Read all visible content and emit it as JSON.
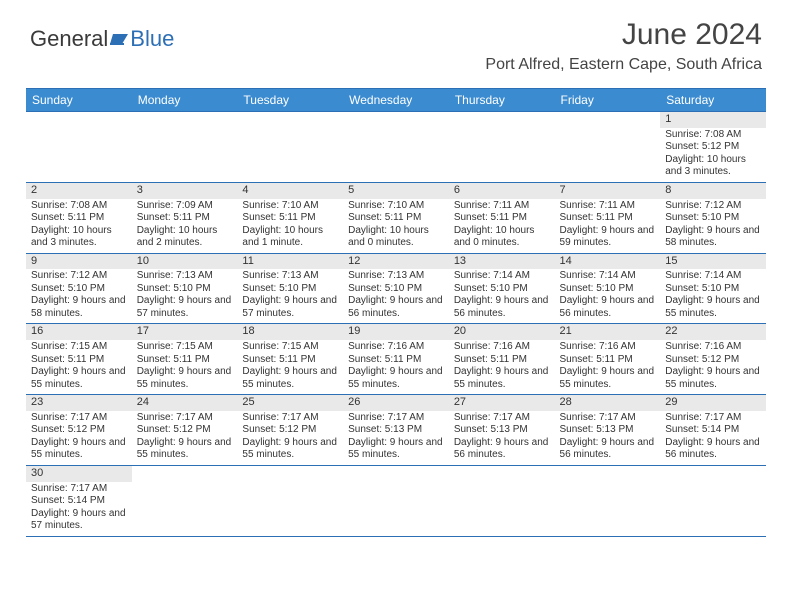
{
  "logo": {
    "textA": "General",
    "textB": "Blue"
  },
  "title": "June 2024",
  "location": "Port Alfred, Eastern Cape, South Africa",
  "colors": {
    "header_bg": "#3b8bd0",
    "border": "#2d6fb5",
    "daynum_bg": "#e9e9e9",
    "text": "#333333"
  },
  "day_headers": [
    "Sunday",
    "Monday",
    "Tuesday",
    "Wednesday",
    "Thursday",
    "Friday",
    "Saturday"
  ],
  "weeks": [
    [
      {
        "n": "",
        "sr": "",
        "ss": "",
        "dl": ""
      },
      {
        "n": "",
        "sr": "",
        "ss": "",
        "dl": ""
      },
      {
        "n": "",
        "sr": "",
        "ss": "",
        "dl": ""
      },
      {
        "n": "",
        "sr": "",
        "ss": "",
        "dl": ""
      },
      {
        "n": "",
        "sr": "",
        "ss": "",
        "dl": ""
      },
      {
        "n": "",
        "sr": "",
        "ss": "",
        "dl": ""
      },
      {
        "n": "1",
        "sr": "Sunrise: 7:08 AM",
        "ss": "Sunset: 5:12 PM",
        "dl": "Daylight: 10 hours and 3 minutes."
      }
    ],
    [
      {
        "n": "2",
        "sr": "Sunrise: 7:08 AM",
        "ss": "Sunset: 5:11 PM",
        "dl": "Daylight: 10 hours and 3 minutes."
      },
      {
        "n": "3",
        "sr": "Sunrise: 7:09 AM",
        "ss": "Sunset: 5:11 PM",
        "dl": "Daylight: 10 hours and 2 minutes."
      },
      {
        "n": "4",
        "sr": "Sunrise: 7:10 AM",
        "ss": "Sunset: 5:11 PM",
        "dl": "Daylight: 10 hours and 1 minute."
      },
      {
        "n": "5",
        "sr": "Sunrise: 7:10 AM",
        "ss": "Sunset: 5:11 PM",
        "dl": "Daylight: 10 hours and 0 minutes."
      },
      {
        "n": "6",
        "sr": "Sunrise: 7:11 AM",
        "ss": "Sunset: 5:11 PM",
        "dl": "Daylight: 10 hours and 0 minutes."
      },
      {
        "n": "7",
        "sr": "Sunrise: 7:11 AM",
        "ss": "Sunset: 5:11 PM",
        "dl": "Daylight: 9 hours and 59 minutes."
      },
      {
        "n": "8",
        "sr": "Sunrise: 7:12 AM",
        "ss": "Sunset: 5:10 PM",
        "dl": "Daylight: 9 hours and 58 minutes."
      }
    ],
    [
      {
        "n": "9",
        "sr": "Sunrise: 7:12 AM",
        "ss": "Sunset: 5:10 PM",
        "dl": "Daylight: 9 hours and 58 minutes."
      },
      {
        "n": "10",
        "sr": "Sunrise: 7:13 AM",
        "ss": "Sunset: 5:10 PM",
        "dl": "Daylight: 9 hours and 57 minutes."
      },
      {
        "n": "11",
        "sr": "Sunrise: 7:13 AM",
        "ss": "Sunset: 5:10 PM",
        "dl": "Daylight: 9 hours and 57 minutes."
      },
      {
        "n": "12",
        "sr": "Sunrise: 7:13 AM",
        "ss": "Sunset: 5:10 PM",
        "dl": "Daylight: 9 hours and 56 minutes."
      },
      {
        "n": "13",
        "sr": "Sunrise: 7:14 AM",
        "ss": "Sunset: 5:10 PM",
        "dl": "Daylight: 9 hours and 56 minutes."
      },
      {
        "n": "14",
        "sr": "Sunrise: 7:14 AM",
        "ss": "Sunset: 5:10 PM",
        "dl": "Daylight: 9 hours and 56 minutes."
      },
      {
        "n": "15",
        "sr": "Sunrise: 7:14 AM",
        "ss": "Sunset: 5:10 PM",
        "dl": "Daylight: 9 hours and 55 minutes."
      }
    ],
    [
      {
        "n": "16",
        "sr": "Sunrise: 7:15 AM",
        "ss": "Sunset: 5:11 PM",
        "dl": "Daylight: 9 hours and 55 minutes."
      },
      {
        "n": "17",
        "sr": "Sunrise: 7:15 AM",
        "ss": "Sunset: 5:11 PM",
        "dl": "Daylight: 9 hours and 55 minutes."
      },
      {
        "n": "18",
        "sr": "Sunrise: 7:15 AM",
        "ss": "Sunset: 5:11 PM",
        "dl": "Daylight: 9 hours and 55 minutes."
      },
      {
        "n": "19",
        "sr": "Sunrise: 7:16 AM",
        "ss": "Sunset: 5:11 PM",
        "dl": "Daylight: 9 hours and 55 minutes."
      },
      {
        "n": "20",
        "sr": "Sunrise: 7:16 AM",
        "ss": "Sunset: 5:11 PM",
        "dl": "Daylight: 9 hours and 55 minutes."
      },
      {
        "n": "21",
        "sr": "Sunrise: 7:16 AM",
        "ss": "Sunset: 5:11 PM",
        "dl": "Daylight: 9 hours and 55 minutes."
      },
      {
        "n": "22",
        "sr": "Sunrise: 7:16 AM",
        "ss": "Sunset: 5:12 PM",
        "dl": "Daylight: 9 hours and 55 minutes."
      }
    ],
    [
      {
        "n": "23",
        "sr": "Sunrise: 7:17 AM",
        "ss": "Sunset: 5:12 PM",
        "dl": "Daylight: 9 hours and 55 minutes."
      },
      {
        "n": "24",
        "sr": "Sunrise: 7:17 AM",
        "ss": "Sunset: 5:12 PM",
        "dl": "Daylight: 9 hours and 55 minutes."
      },
      {
        "n": "25",
        "sr": "Sunrise: 7:17 AM",
        "ss": "Sunset: 5:12 PM",
        "dl": "Daylight: 9 hours and 55 minutes."
      },
      {
        "n": "26",
        "sr": "Sunrise: 7:17 AM",
        "ss": "Sunset: 5:13 PM",
        "dl": "Daylight: 9 hours and 55 minutes."
      },
      {
        "n": "27",
        "sr": "Sunrise: 7:17 AM",
        "ss": "Sunset: 5:13 PM",
        "dl": "Daylight: 9 hours and 56 minutes."
      },
      {
        "n": "28",
        "sr": "Sunrise: 7:17 AM",
        "ss": "Sunset: 5:13 PM",
        "dl": "Daylight: 9 hours and 56 minutes."
      },
      {
        "n": "29",
        "sr": "Sunrise: 7:17 AM",
        "ss": "Sunset: 5:14 PM",
        "dl": "Daylight: 9 hours and 56 minutes."
      }
    ],
    [
      {
        "n": "30",
        "sr": "Sunrise: 7:17 AM",
        "ss": "Sunset: 5:14 PM",
        "dl": "Daylight: 9 hours and 57 minutes."
      },
      {
        "n": "",
        "sr": "",
        "ss": "",
        "dl": ""
      },
      {
        "n": "",
        "sr": "",
        "ss": "",
        "dl": ""
      },
      {
        "n": "",
        "sr": "",
        "ss": "",
        "dl": ""
      },
      {
        "n": "",
        "sr": "",
        "ss": "",
        "dl": ""
      },
      {
        "n": "",
        "sr": "",
        "ss": "",
        "dl": ""
      },
      {
        "n": "",
        "sr": "",
        "ss": "",
        "dl": ""
      }
    ]
  ]
}
